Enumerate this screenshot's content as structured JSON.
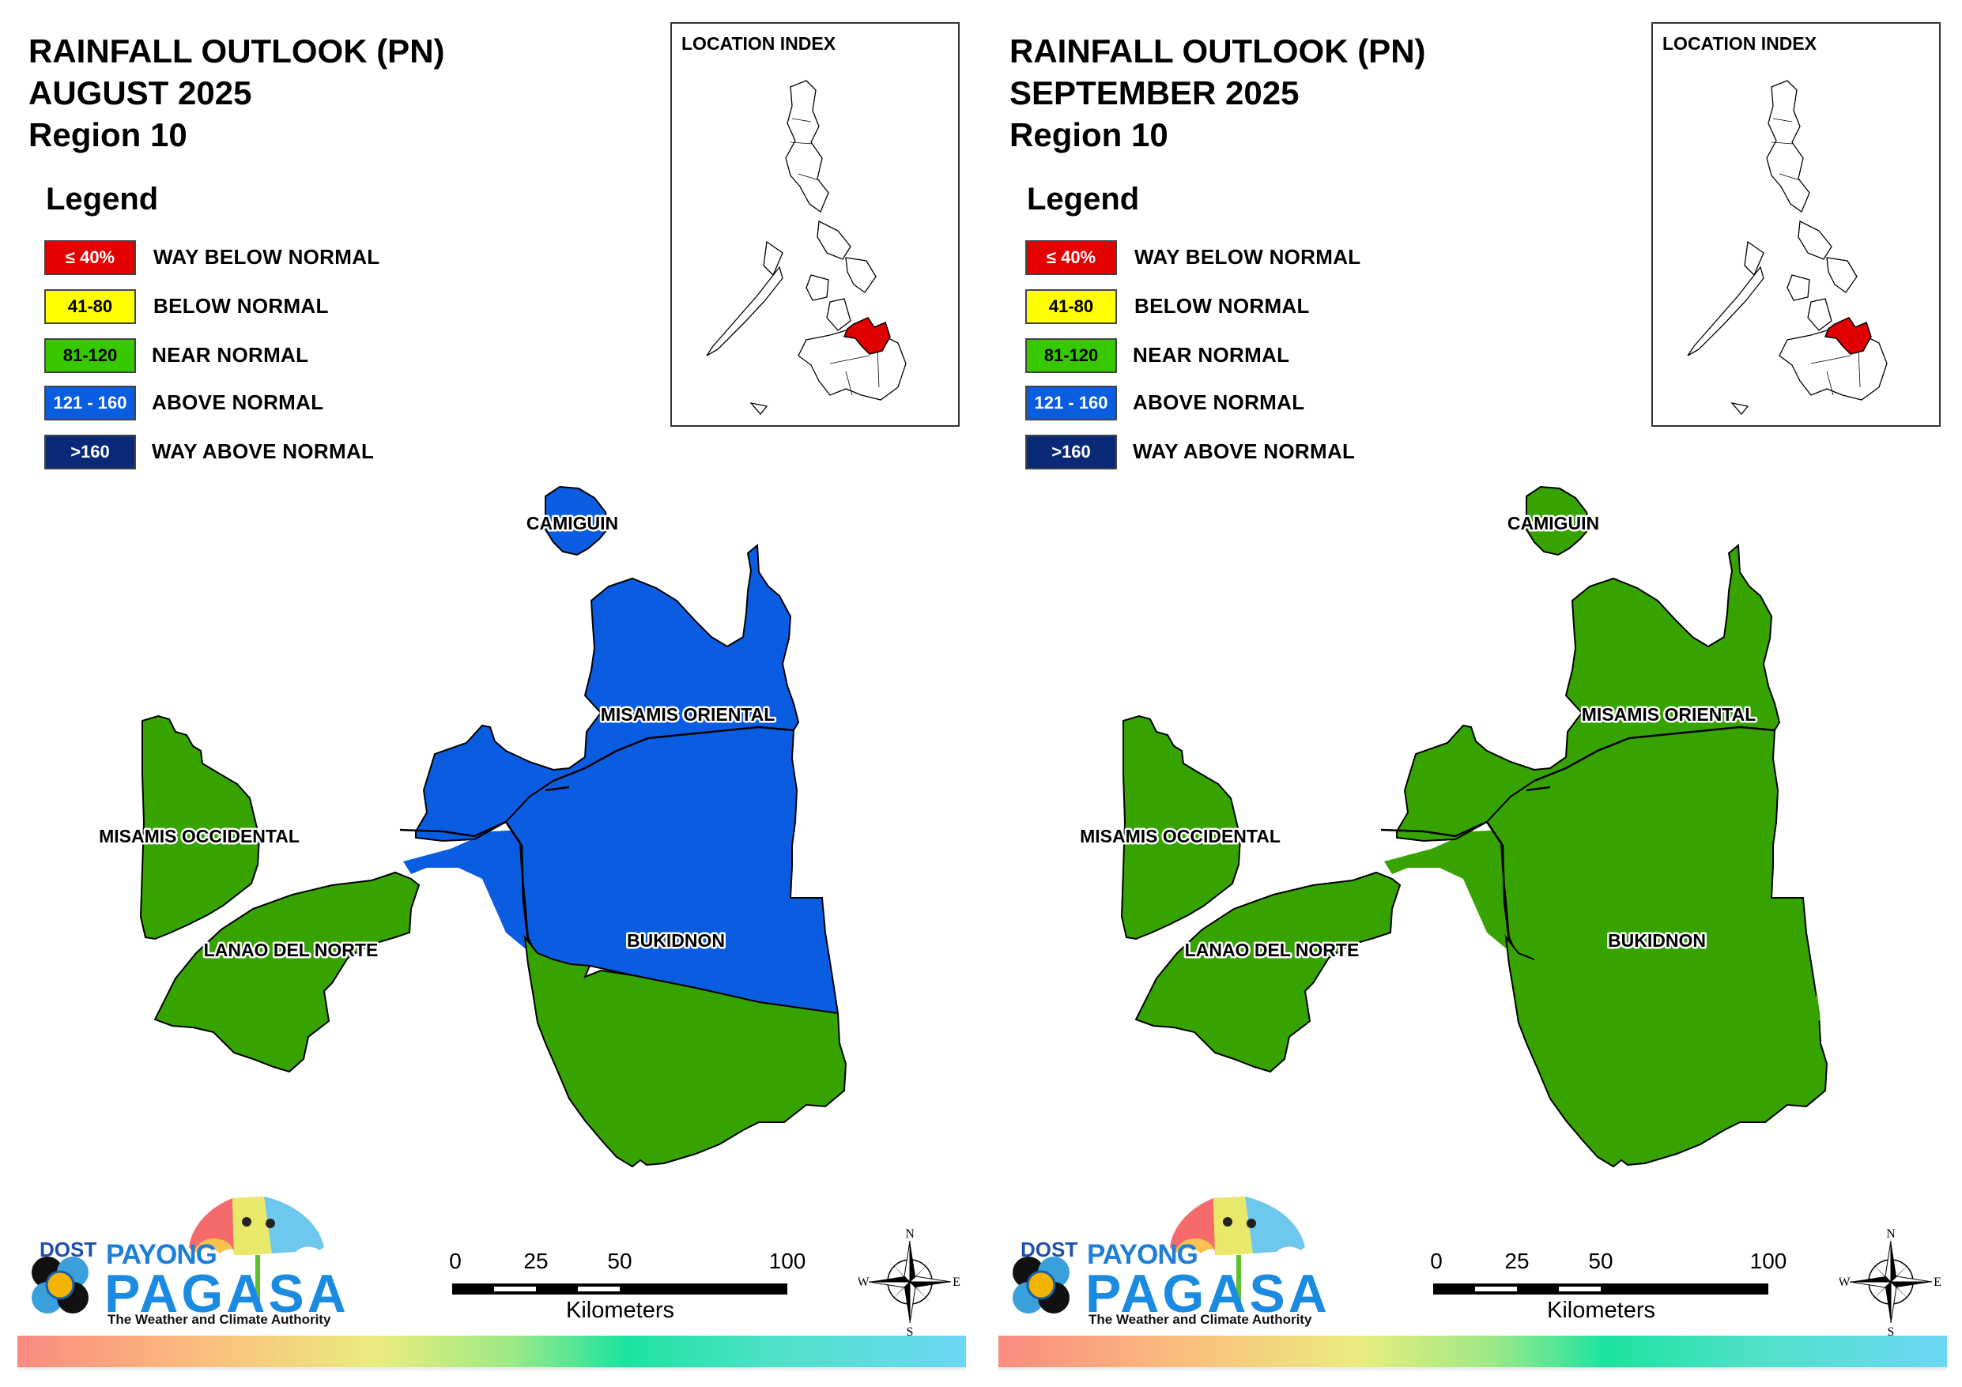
{
  "panels": [
    {
      "title_line1": "RAINFALL OUTLOOK (PN)",
      "title_line2": "AUGUST 2025",
      "title_line3": "Region 10",
      "province_colors": {
        "camiguin": "#0a5de0",
        "misamis_oriental": "#0a5de0",
        "misamis_occidental": "#37a300",
        "lanao_del_norte": "#37a300",
        "lanao_del_norte_east": "#0a5de0",
        "bukidnon_north": "#0a5de0",
        "bukidnon_south": "#37a300"
      },
      "province_labels": {
        "camiguin": "CAMIGUIN",
        "misamis_oriental": "MISAMIS ORIENTAL",
        "misamis_occidental": "MISAMIS OCCIDENTAL",
        "lanao_del_norte": "LANAO DEL NORTE",
        "bukidnon": "BUKIDNON"
      }
    },
    {
      "title_line1": "RAINFALL OUTLOOK (PN)",
      "title_line2": "SEPTEMBER 2025",
      "title_line3": "Region 10",
      "province_colors": {
        "camiguin": "#37a300",
        "misamis_oriental": "#37a300",
        "misamis_occidental": "#37a300",
        "lanao_del_norte": "#37a300",
        "lanao_del_norte_east": "#37a300",
        "bukidnon_north": "#37a300",
        "bukidnon_south": "#37a300"
      },
      "province_labels": {
        "camiguin": "CAMIGUIN",
        "misamis_oriental": "MISAMIS ORIENTAL",
        "misamis_occidental": "MISAMIS OCCIDENTAL",
        "lanao_del_norte": "LANAO DEL NORTE",
        "bukidnon": "BUKIDNON"
      }
    }
  ],
  "legend": {
    "heading": "Legend",
    "items": [
      {
        "range": "≤ 40%",
        "label": "WAY BELOW NORMAL",
        "color": "#e50000",
        "text_color": "#ffffff"
      },
      {
        "range": "41-80",
        "label": "BELOW NORMAL",
        "color": "#ffff00",
        "text_color": "#000000"
      },
      {
        "range": "81-120",
        "label": "NEAR NORMAL",
        "color": "#37c800",
        "text_color": "#000000"
      },
      {
        "range": "121 - 160",
        "label": "ABOVE NORMAL",
        "color": "#0a5de0",
        "text_color": "#ffffff"
      },
      {
        "range": ">160",
        "label": "WAY ABOVE NORMAL",
        "color": "#0a2a78",
        "text_color": "#ffffff"
      }
    ]
  },
  "inset": {
    "title": "LOCATION INDEX",
    "highlight_color": "#e00000"
  },
  "scale": {
    "ticks": [
      "0",
      "25",
      "50",
      "100"
    ],
    "unit": "Kilometers"
  },
  "compass": {
    "n": "N",
    "s": "S",
    "e": "E",
    "w": "W"
  },
  "logo": {
    "dost": "DOST",
    "payong": "PAYONG",
    "pagasa": "PAGASA",
    "tagline": "The Weather and Climate Authority"
  }
}
